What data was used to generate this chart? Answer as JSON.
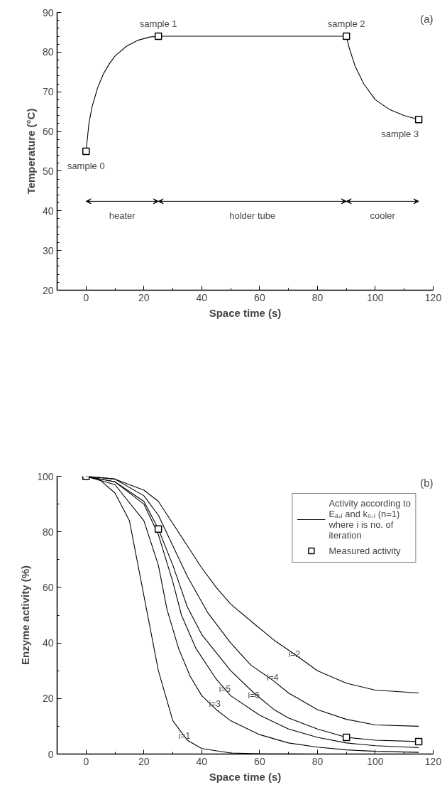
{
  "chart_data": [
    {
      "type": "line",
      "title": "(a)",
      "xlabel": "Space time (s)",
      "ylabel": "Temperature (°C)",
      "xlim": [
        -10,
        120
      ],
      "ylim": [
        20,
        90
      ],
      "xticks": [
        0,
        {
          "value": 10,
          "label": null
        },
        20,
        {
          "value": 30,
          "label": null
        },
        40,
        {
          "value": 50,
          "label": null
        },
        60,
        {
          "value": 70,
          "label": null
        },
        80,
        {
          "value": 90,
          "label": null
        },
        100,
        {
          "value": 110,
          "label": null
        },
        120
      ],
      "yticks": [
        20,
        {
          "value": 22,
          "label": null
        },
        {
          "value": 24,
          "label": null
        },
        {
          "value": 26,
          "label": null
        },
        {
          "value": 28,
          "label": null
        },
        30,
        {
          "value": 32,
          "label": null
        },
        {
          "value": 34,
          "label": null
        },
        {
          "value": 36,
          "label": null
        },
        {
          "value": 38,
          "label": null
        },
        40,
        {
          "value": 42,
          "label": null
        },
        {
          "value": 44,
          "label": null
        },
        {
          "value": 46,
          "label": null
        },
        {
          "value": 48,
          "label": null
        },
        50,
        {
          "value": 52,
          "label": null
        },
        {
          "value": 54,
          "label": null
        },
        {
          "value": 56,
          "label": null
        },
        {
          "value": 58,
          "label": null
        },
        60,
        {
          "value": 62,
          "label": null
        },
        {
          "value": 64,
          "label": null
        },
        {
          "value": 66,
          "label": null
        },
        {
          "value": 68,
          "label": null
        },
        70,
        {
          "value": 72,
          "label": null
        },
        {
          "value": 74,
          "label": null
        },
        {
          "value": 76,
          "label": null
        },
        {
          "value": 78,
          "label": null
        },
        80,
        {
          "value": 82,
          "label": null
        },
        {
          "value": 84,
          "label": null
        },
        {
          "value": 86,
          "label": null
        },
        {
          "value": 88,
          "label": null
        },
        90
      ],
      "series": [
        {
          "color": "#000000",
          "marker": "none",
          "x": [
            0,
            1,
            2,
            4,
            6,
            8,
            10,
            14,
            18,
            22,
            25,
            90,
            91,
            93,
            96,
            100,
            105,
            110,
            115
          ],
          "values": [
            55,
            62,
            66,
            71,
            74.5,
            77,
            79,
            81.5,
            83,
            83.8,
            84,
            84,
            81,
            76.5,
            72,
            68,
            65.5,
            64,
            63
          ]
        },
        {
          "type": "scatter",
          "color": "#000000",
          "marker": "square",
          "x": [
            0,
            25,
            90,
            115
          ],
          "values": [
            55,
            84,
            84,
            63
          ]
        }
      ],
      "annotations": [
        {
          "text": "sample 0",
          "x": 0,
          "y": 55
        },
        {
          "text": "sample 1",
          "x": 25,
          "y": 84
        },
        {
          "text": "sample 2",
          "x": 90,
          "y": 84
        },
        {
          "text": "sample 3",
          "x": 115,
          "y": 63
        },
        "heater",
        "holder tube",
        "cooler"
      ]
    },
    {
      "type": "line",
      "title": "(b)",
      "xlabel": "Space time (s)",
      "ylabel": "Enzyme activity (%)",
      "xlim": [
        -10,
        120
      ],
      "ylim": [
        0,
        100
      ],
      "legend": "top right",
      "xticks": [
        0,
        {
          "value": 10,
          "label": null
        },
        20,
        {
          "value": 30,
          "label": null
        },
        40,
        {
          "value": 50,
          "label": null
        },
        60,
        {
          "value": 70,
          "label": null
        },
        80,
        {
          "value": 90,
          "label": null
        },
        100,
        {
          "value": 110,
          "label": null
        },
        120
      ],
      "yticks": [
        0,
        {
          "value": 10,
          "label": null
        },
        20,
        {
          "value": 30,
          "label": null
        },
        40,
        {
          "value": 50,
          "label": null
        },
        60,
        {
          "value": 70,
          "label": null
        },
        80,
        {
          "value": 90,
          "label": null
        },
        100
      ],
      "series": [
        {
          "color": "#000000",
          "marker": "none",
          "x": [
            0,
            5,
            10,
            15,
            20,
            25,
            30,
            35,
            40,
            50,
            60,
            80,
            115
          ],
          "values": [
            100,
            98.5,
            94,
            84,
            57,
            30,
            12,
            5,
            2,
            0.4,
            0.1,
            0,
            0
          ]
        },
        {
          "color": "#000000",
          "marker": "none",
          "x": [
            0,
            10,
            20,
            25,
            30,
            35,
            40,
            45,
            50,
            58,
            65,
            72,
            80,
            90,
            100,
            115
          ],
          "values": [
            100,
            99,
            95,
            91,
            83,
            75,
            67,
            60,
            54,
            47,
            41,
            36,
            30,
            25.5,
            23,
            22
          ]
        },
        {
          "color": "#000000",
          "marker": "none",
          "x": [
            0,
            10,
            20,
            25,
            28,
            32,
            36,
            40,
            45,
            50,
            60,
            70,
            80,
            90,
            100,
            115
          ],
          "values": [
            100,
            97,
            84,
            68,
            52,
            38,
            28,
            21,
            16,
            12,
            7,
            4,
            2.5,
            1.5,
            1,
            0.6
          ]
        },
        {
          "color": "#000000",
          "marker": "none",
          "x": [
            0,
            10,
            20,
            25,
            30,
            35,
            42,
            50,
            57,
            64,
            70,
            80,
            90,
            100,
            115
          ],
          "values": [
            100,
            99,
            93,
            86,
            75,
            64,
            51,
            40,
            32,
            27,
            22,
            16,
            12.5,
            10.5,
            10
          ]
        },
        {
          "color": "#000000",
          "marker": "none",
          "x": [
            0,
            10,
            20,
            25,
            30,
            33,
            38,
            45,
            50,
            60,
            70,
            80,
            90,
            100,
            115
          ],
          "values": [
            100,
            98,
            90,
            79,
            62,
            50,
            38,
            27,
            21,
            14,
            9,
            6,
            4,
            3,
            2.3
          ]
        },
        {
          "color": "#000000",
          "marker": "none",
          "x": [
            0,
            10,
            20,
            25,
            30,
            35,
            40,
            50,
            58,
            65,
            70,
            80,
            90,
            100,
            115
          ],
          "values": [
            100,
            98,
            91,
            81,
            68,
            53,
            43,
            30,
            22,
            16,
            13,
            9,
            6,
            5,
            4.5
          ]
        },
        {
          "type": "scatter",
          "name": "Measured activity",
          "color": "#000000",
          "marker": "square",
          "x": [
            0,
            25,
            90,
            115
          ],
          "values": [
            100,
            81,
            6,
            4.5
          ]
        }
      ],
      "annotations": [
        "Activity according to Eₐ,ᵢ and k₀,ᵢ (n=1) where i is no. of iteration",
        {
          "text": "i=1",
          "x": 34,
          "y": 6.6
        },
        {
          "text": "i=2",
          "x": 72,
          "y": 36
        },
        {
          "text": "i=3",
          "x": 44.5,
          "y": 18
        },
        {
          "text": "i=4",
          "x": 64.5,
          "y": 27.6
        },
        {
          "text": "i=5",
          "x": 48,
          "y": 23.5
        },
        {
          "text": "i=6",
          "x": 58,
          "y": 21
        }
      ]
    }
  ]
}
